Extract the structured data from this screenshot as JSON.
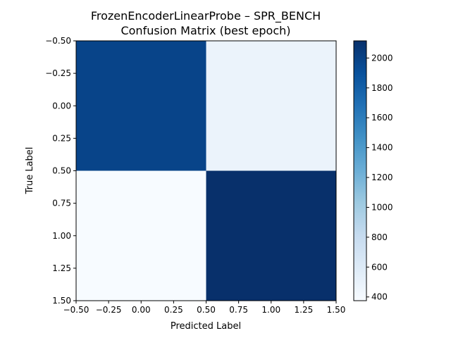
{
  "chart_data": {
    "type": "heatmap",
    "title_line1": "FrozenEncoderLinearProbe – SPR_BENCH",
    "title_line2": "Confusion Matrix (best epoch)",
    "xlabel": "Predicted Label",
    "ylabel": "True Label",
    "xlim": [
      -0.5,
      1.5
    ],
    "ylim": [
      -0.5,
      1.5
    ],
    "x_ticks": [
      -0.5,
      -0.25,
      0.0,
      0.25,
      0.5,
      0.75,
      1.0,
      1.25,
      1.5
    ],
    "x_tick_labels": [
      "−0.50",
      "−0.25",
      "0.00",
      "0.25",
      "0.50",
      "0.75",
      "1.00",
      "1.25",
      "1.50"
    ],
    "y_ticks": [
      -0.5,
      -0.25,
      0.0,
      0.25,
      0.5,
      0.75,
      1.0,
      1.25,
      1.5
    ],
    "y_tick_labels": [
      "−0.50",
      "−0.25",
      "0.00",
      "0.25",
      "0.50",
      "0.75",
      "1.00",
      "1.25",
      "1.50"
    ],
    "matrix": [
      [
        1980,
        480
      ],
      [
        375,
        2115
      ]
    ],
    "colorbar": {
      "min": 375,
      "max": 2115,
      "ticks": [
        400,
        600,
        800,
        1000,
        1200,
        1400,
        1600,
        1800,
        2000
      ],
      "tick_labels": [
        "400",
        "600",
        "800",
        "1000",
        "1200",
        "1400",
        "1600",
        "1800",
        "2000"
      ],
      "colormap": [
        "#f7fbff",
        "#deebf7",
        "#c6dbef",
        "#9ecae1",
        "#6baed6",
        "#4292c6",
        "#2171b5",
        "#08519c",
        "#08306b"
      ]
    }
  }
}
